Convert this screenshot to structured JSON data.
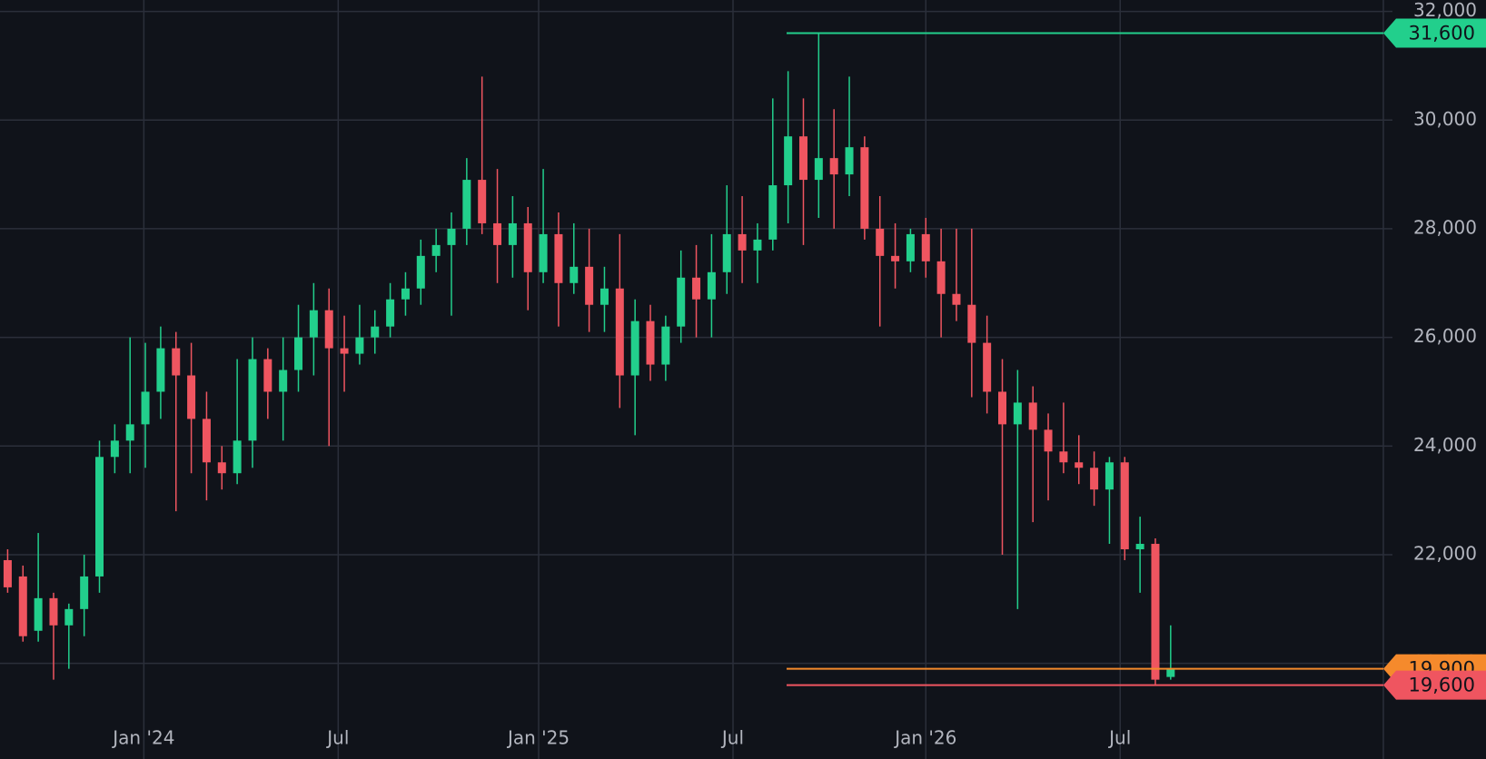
{
  "chart_data": {
    "type": "candlestick",
    "open": [
      21900,
      21600,
      20600,
      21200,
      20700,
      21000,
      21600,
      23800,
      24100,
      24400,
      25000,
      25800,
      25300,
      24500,
      23700,
      23500,
      24100,
      25600,
      25000,
      25400,
      26000,
      26500,
      25800,
      25700,
      26000,
      26200,
      26700,
      26900,
      27500,
      27700,
      28000,
      28900,
      28100,
      27700,
      28100,
      27200,
      27900,
      27000,
      27300,
      26600,
      26900,
      25300,
      26300,
      25500,
      26200,
      27100,
      26700,
      27200,
      27900,
      27600,
      27800,
      28800,
      29700,
      28900,
      29300,
      29000,
      29500,
      28000,
      27500,
      27400,
      27900,
      27400,
      26800,
      26600,
      25900,
      25000,
      24400,
      24800,
      24300,
      23900,
      23700,
      23600,
      23200,
      23700,
      22100,
      22200,
      19750
    ],
    "high": [
      22100,
      21800,
      22400,
      21300,
      21100,
      22000,
      24100,
      24400,
      26000,
      25900,
      26200,
      26100,
      25900,
      25000,
      24000,
      25600,
      26000,
      25800,
      26000,
      26600,
      27000,
      26900,
      26400,
      26600,
      26500,
      27000,
      27200,
      27800,
      28000,
      28300,
      29300,
      30800,
      29100,
      28600,
      28400,
      29100,
      28300,
      28100,
      28000,
      27300,
      27900,
      26700,
      26600,
      26400,
      27600,
      27700,
      27900,
      28800,
      28600,
      28100,
      30400,
      30900,
      30400,
      31600,
      30200,
      30800,
      29700,
      28600,
      28100,
      28000,
      28200,
      28000,
      28000,
      28000,
      26400,
      25600,
      25400,
      25100,
      24600,
      24800,
      24200,
      23900,
      23800,
      23800,
      22700,
      22300,
      20700
    ],
    "low": [
      21300,
      20400,
      20400,
      19700,
      19900,
      20500,
      21300,
      23500,
      23500,
      23600,
      24500,
      22800,
      23500,
      23000,
      23200,
      23300,
      23600,
      24500,
      24100,
      25000,
      25300,
      24000,
      25000,
      25500,
      25700,
      26000,
      26400,
      26600,
      27200,
      26400,
      27700,
      27900,
      27000,
      27100,
      26500,
      27000,
      26200,
      26800,
      26100,
      26100,
      24700,
      24200,
      25200,
      25200,
      25900,
      26000,
      26000,
      26800,
      27000,
      27000,
      27600,
      28100,
      27700,
      28200,
      28000,
      28600,
      27800,
      26200,
      26900,
      27200,
      27100,
      26000,
      26300,
      24900,
      24600,
      22000,
      21000,
      22600,
      23000,
      23500,
      23300,
      22900,
      22200,
      21900,
      21300,
      19600,
      19700
    ],
    "close": [
      21400,
      20500,
      21200,
      20700,
      21000,
      21600,
      23800,
      24100,
      24400,
      25000,
      25800,
      25300,
      24500,
      23700,
      23500,
      24100,
      25600,
      25000,
      25400,
      26000,
      26500,
      25800,
      25700,
      26000,
      26200,
      26700,
      26900,
      27500,
      27700,
      28000,
      28900,
      28100,
      27700,
      28100,
      27200,
      27900,
      27000,
      27300,
      26600,
      26900,
      25300,
      26300,
      25500,
      26200,
      27100,
      26700,
      27200,
      27900,
      27600,
      27800,
      28800,
      29700,
      28900,
      29300,
      29000,
      29500,
      28000,
      27500,
      27400,
      27900,
      27400,
      26800,
      26600,
      25900,
      25000,
      24400,
      24800,
      24300,
      23900,
      23700,
      23600,
      23200,
      23700,
      22100,
      22200,
      19700,
      19900
    ],
    "up_color": "#22cf8c",
    "down_color": "#ef5560",
    "xlim": [
      -0.5,
      89.9
    ],
    "ylim": [
      18240,
      32210
    ],
    "xticks": [
      {
        "value": 8.9,
        "label": "Jan '24"
      },
      {
        "value": 21.6,
        "label": "Jul"
      },
      {
        "value": 34.7,
        "label": "Jan '25"
      },
      {
        "value": 47.4,
        "label": "Jul"
      },
      {
        "value": 60.0,
        "label": "Jan '26"
      },
      {
        "value": 72.7,
        "label": "Jul"
      }
    ],
    "yticks": [
      {
        "value": 20000,
        "label": "20,000"
      },
      {
        "value": 22000,
        "label": "22,000"
      },
      {
        "value": 24000,
        "label": "24,000"
      },
      {
        "value": 26000,
        "label": "26,000"
      },
      {
        "value": 28000,
        "label": "28,000"
      },
      {
        "value": 30000,
        "label": "30,000"
      },
      {
        "value": 32000,
        "label": "32,000"
      }
    ],
    "grid": true,
    "price_lines": [
      {
        "value": 31600,
        "label": "31,600",
        "color": "#22cf8c"
      },
      {
        "value": 19900,
        "label": "19,900",
        "color": "#f58a2c"
      },
      {
        "value": 19600,
        "label": "19,600",
        "color": "#ef5560"
      }
    ]
  }
}
